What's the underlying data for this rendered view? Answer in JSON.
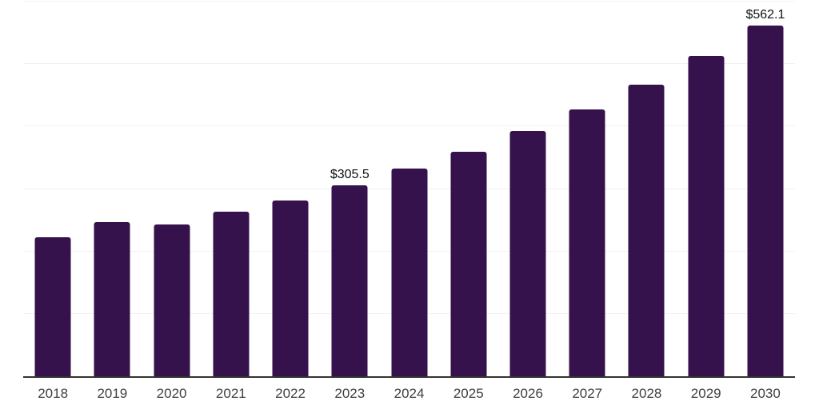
{
  "chart_data": {
    "type": "bar",
    "title": "",
    "xlabel": "",
    "ylabel": "",
    "categories": [
      "2018",
      "2019",
      "2020",
      "2021",
      "2022",
      "2023",
      "2024",
      "2025",
      "2026",
      "2027",
      "2028",
      "2029",
      "2030"
    ],
    "values": [
      223.0,
      247.0,
      243.5,
      264.0,
      281.5,
      305.5,
      333.0,
      360.0,
      392.5,
      427.0,
      466.5,
      513.5,
      562.1
    ],
    "point_labels": [
      "",
      "",
      "",
      "",
      "",
      "$305.5",
      "",
      "",
      "",
      "",
      "",
      "",
      "$562.1"
    ],
    "ylim": [
      0,
      600
    ],
    "gridline_interval": 100,
    "grid": true,
    "legend": false,
    "y_tick_labels_visible": false,
    "bar_color": "#35124B",
    "axis_color": "#333333",
    "gridline_color": "#f2f2f2",
    "tick_label_color": "#3f3f3f",
    "value_label_color": "#111111"
  }
}
